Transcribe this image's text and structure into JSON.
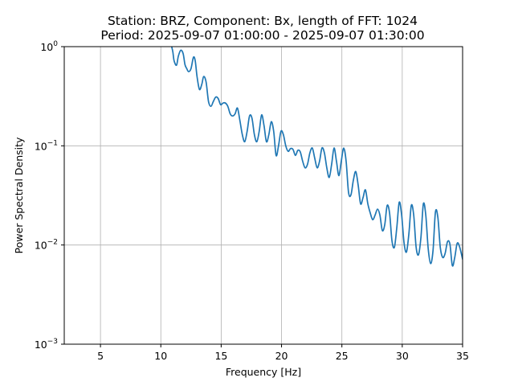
{
  "chart_data": {
    "type": "line",
    "title": "Station: BRZ, Component: Bx, length of FFT: 1024",
    "subtitle": "Period: 2025-09-07 01:00:00 - 2025-09-07 01:30:00",
    "xlabel": "Frequency [Hz]",
    "ylabel": "Power Spectral Density",
    "xlim": [
      2,
      35
    ],
    "ylim": [
      0.001,
      1
    ],
    "yscale": "log",
    "grid": true,
    "line_color": "#1f77b4",
    "x_ticks": [
      5,
      10,
      15,
      20,
      25,
      30,
      35
    ],
    "x_tick_labels": [
      "5",
      "10",
      "15",
      "20",
      "25",
      "30",
      "35"
    ],
    "y_ticks": [
      0.001,
      0.01,
      0.1,
      1
    ],
    "y_tick_base": "10",
    "y_tick_exponents": [
      "−3",
      "−2",
      "−1",
      "0"
    ],
    "series": [
      {
        "x": [
          10.9,
          11.0,
          11.1,
          11.3,
          11.45,
          11.65,
          11.85,
          12.0,
          12.15,
          12.3,
          12.5,
          12.7,
          12.85,
          13.0,
          13.2,
          13.4,
          13.55,
          13.75,
          13.95,
          14.15,
          14.35,
          14.55,
          14.75,
          14.95,
          15.15,
          15.35,
          15.55,
          15.75,
          15.95,
          16.15,
          16.35,
          16.55,
          16.75,
          16.95,
          17.15,
          17.35,
          17.55,
          17.75,
          17.95,
          18.15,
          18.35,
          18.55,
          18.75,
          18.95,
          19.15,
          19.35,
          19.55,
          19.75,
          19.95,
          20.15,
          20.35,
          20.55,
          20.75,
          20.95,
          21.15,
          21.35,
          21.55,
          21.75,
          21.95,
          22.15,
          22.35,
          22.55,
          22.75,
          22.95,
          23.15,
          23.35,
          23.55,
          23.75,
          23.95,
          24.15,
          24.35,
          24.55,
          24.75,
          24.95,
          25.15,
          25.35,
          25.55,
          25.75,
          25.95,
          26.15,
          26.35,
          26.55,
          26.75,
          26.95,
          27.15,
          27.35,
          27.55,
          27.75,
          27.95,
          28.15,
          28.35,
          28.55,
          28.75,
          28.95,
          29.15,
          29.35,
          29.55,
          29.75,
          29.95,
          30.15,
          30.35,
          30.55,
          30.75,
          30.95,
          31.15,
          31.35,
          31.55,
          31.75,
          31.95,
          32.15,
          32.35,
          32.55,
          32.75,
          32.95,
          33.15,
          33.35,
          33.55,
          33.75,
          33.95,
          34.15,
          34.35,
          34.55,
          34.75,
          35.0
        ],
        "y": [
          1.0,
          0.88,
          0.72,
          0.65,
          0.8,
          0.92,
          0.85,
          0.66,
          0.6,
          0.56,
          0.6,
          0.78,
          0.72,
          0.5,
          0.37,
          0.42,
          0.5,
          0.44,
          0.28,
          0.25,
          0.28,
          0.31,
          0.3,
          0.26,
          0.27,
          0.27,
          0.25,
          0.21,
          0.2,
          0.21,
          0.24,
          0.18,
          0.13,
          0.11,
          0.14,
          0.2,
          0.19,
          0.13,
          0.11,
          0.14,
          0.205,
          0.16,
          0.11,
          0.13,
          0.175,
          0.14,
          0.08,
          0.1,
          0.14,
          0.13,
          0.1,
          0.088,
          0.094,
          0.092,
          0.08,
          0.09,
          0.087,
          0.07,
          0.06,
          0.065,
          0.085,
          0.095,
          0.075,
          0.06,
          0.07,
          0.095,
          0.085,
          0.06,
          0.048,
          0.065,
          0.095,
          0.07,
          0.05,
          0.07,
          0.095,
          0.07,
          0.034,
          0.032,
          0.045,
          0.055,
          0.04,
          0.026,
          0.03,
          0.036,
          0.026,
          0.021,
          0.018,
          0.02,
          0.023,
          0.02,
          0.014,
          0.016,
          0.025,
          0.021,
          0.011,
          0.0095,
          0.015,
          0.027,
          0.02,
          0.0105,
          0.0085,
          0.013,
          0.025,
          0.02,
          0.0095,
          0.008,
          0.012,
          0.026,
          0.02,
          0.0092,
          0.0065,
          0.0088,
          0.0215,
          0.019,
          0.0095,
          0.0075,
          0.0082,
          0.0108,
          0.0102,
          0.0062,
          0.0075,
          0.0104,
          0.0096,
          0.0072
        ]
      }
    ]
  }
}
